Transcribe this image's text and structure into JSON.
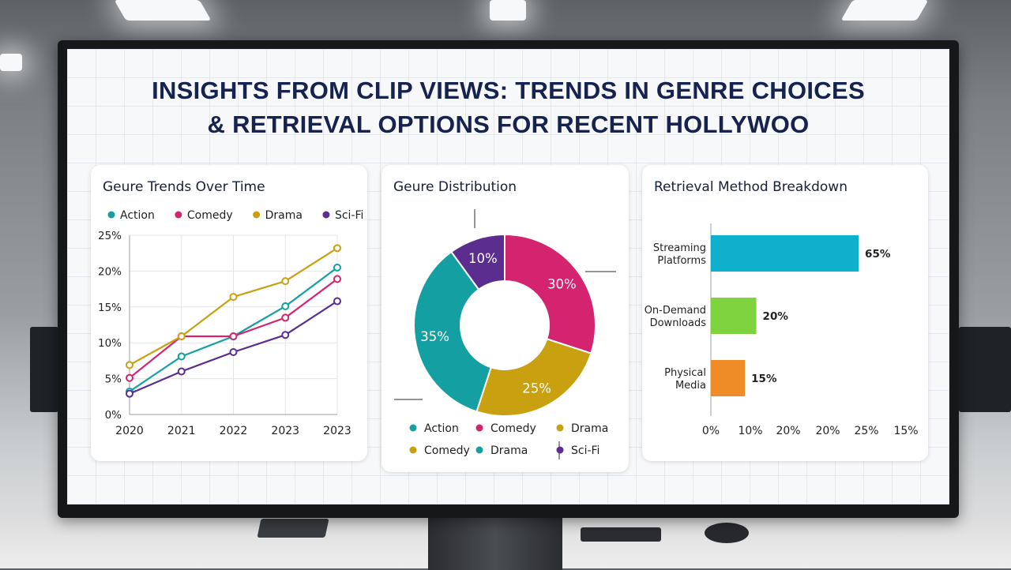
{
  "dashboard": {
    "title_line1": "INSIGHTS FROM CLIP VIEWS: TRENDS IN GENRE CHOICES",
    "title_line2": "& RETRIEVAL OPTIONS FOR RECENT HOLLYWOO"
  },
  "colors": {
    "action": "#14a0a3",
    "comedy": "#d4236f",
    "drama": "#c9a010",
    "scifi": "#5b2d8e",
    "streaming": "#0fb0cc",
    "downloads": "#7ed33e",
    "physical": "#f08c27",
    "title": "#16224f"
  },
  "chart_data": [
    {
      "type": "line",
      "title": "Geure Trends Over Time",
      "legend": "top",
      "grid": true,
      "categories": [
        "2020",
        "2021",
        "2022",
        "2023",
        "2023"
      ],
      "y_ticks": [
        "0%",
        "5%",
        "10%",
        "15%",
        "20%",
        "25%"
      ],
      "ylim": [
        0,
        25
      ],
      "series": [
        {
          "name": "Action",
          "color": "#14a0a3",
          "values": [
            3.2,
            8.1,
            10.9,
            15.1,
            20.5
          ]
        },
        {
          "name": "Comedy",
          "color": "#d4236f",
          "values": [
            5.1,
            10.9,
            10.9,
            13.5,
            18.9
          ]
        },
        {
          "name": "Drama",
          "color": "#c9a010",
          "values": [
            6.9,
            10.9,
            16.4,
            18.6,
            23.2
          ]
        },
        {
          "name": "Sci-Fi",
          "color": "#5b2d8e",
          "values": [
            2.9,
            6.0,
            8.7,
            11.1,
            15.8
          ]
        }
      ]
    },
    {
      "type": "pie",
      "donut": true,
      "title": "Geure Distribution",
      "slices": [
        {
          "label": "30%",
          "value": 30,
          "color": "#d4236f"
        },
        {
          "label": "25%",
          "value": 25,
          "color": "#c9a010"
        },
        {
          "label": "35%",
          "value": 35,
          "color": "#14a0a3"
        },
        {
          "label": "10%",
          "value": 10,
          "color": "#5b2d8e"
        }
      ],
      "legend": "bottom",
      "legend_items": [
        {
          "name": "Action",
          "color": "#14a0a3"
        },
        {
          "name": "Comedy",
          "color": "#d4236f"
        },
        {
          "name": "Drama",
          "color": "#c9a010"
        },
        {
          "name": "Comedy",
          "color": "#c9a010"
        },
        {
          "name": "Drama",
          "color": "#14a0a3"
        },
        {
          "name": "Sci-Fi",
          "color": "#5b2d8e"
        }
      ]
    },
    {
      "type": "bar",
      "orientation": "horizontal",
      "title": "Retrieval Method Breakdown",
      "categories": [
        [
          "Streaming",
          "Platforms"
        ],
        [
          "On-Demand",
          "Downloads"
        ],
        [
          "Physical",
          "Media"
        ]
      ],
      "values": [
        65,
        20,
        15
      ],
      "value_labels": [
        "65%",
        "20%",
        "15%"
      ],
      "colors": [
        "#0fb0cc",
        "#7ed33e",
        "#f08c27"
      ],
      "x_ticks": [
        "0%",
        "10%",
        "20%",
        "20%",
        "25%",
        "15%"
      ],
      "xlim": [
        0,
        90
      ]
    }
  ]
}
